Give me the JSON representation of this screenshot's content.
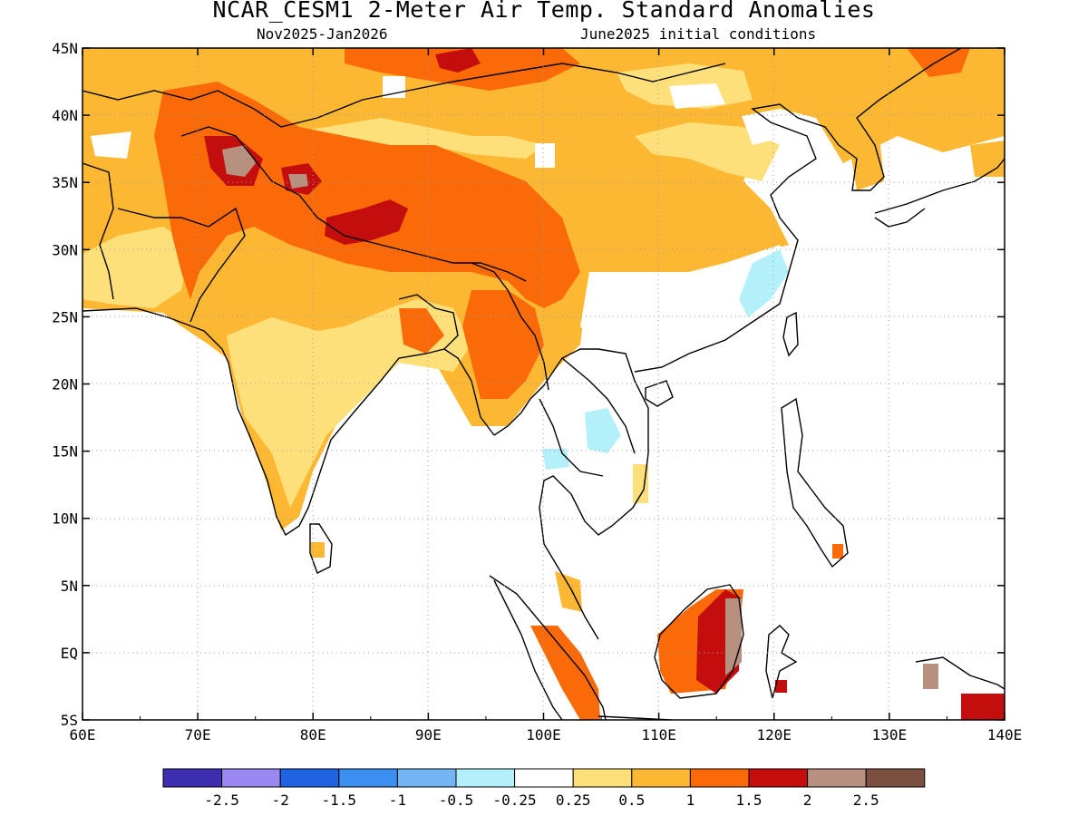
{
  "title": "NCAR_CESM1 2-Meter Air Temp. Standard Anomalies",
  "subtitle_left": "Nov2025-Jan2026",
  "subtitle_right": "June2025 initial conditions",
  "axes": {
    "lon_labels": [
      "60E",
      "70E",
      "80E",
      "90E",
      "100E",
      "110E",
      "120E",
      "130E",
      "140E"
    ],
    "lat_labels": [
      "45N",
      "40N",
      "35N",
      "30N",
      "25N",
      "20N",
      "15N",
      "10N",
      "5N",
      "EQ",
      "5S"
    ],
    "lon_range": [
      60,
      140
    ],
    "lat_range": [
      -5,
      45
    ]
  },
  "colorbar": {
    "colors": [
      "#3e2fb0",
      "#9b87f0",
      "#1f63e0",
      "#3b8ff0",
      "#73b4f5",
      "#b4f0fa",
      "#ffffff",
      "#fee07a",
      "#fdb833",
      "#fb6a08",
      "#c40e0e",
      "#b89080",
      "#7b5040"
    ],
    "labels": [
      "-2.5",
      "-2",
      "-1.5",
      "-1",
      "-0.5",
      "-0.25",
      "0.25",
      "0.5",
      "1",
      "1.5",
      "2",
      "2.5"
    ]
  },
  "legend_meaning": {
    "strong_warm": "#c40e0e",
    "warm": "#fb6a08",
    "moderate_warm": "#fdb833",
    "slight_warm": "#fee07a",
    "slight_cool": "#b4f0fa"
  }
}
